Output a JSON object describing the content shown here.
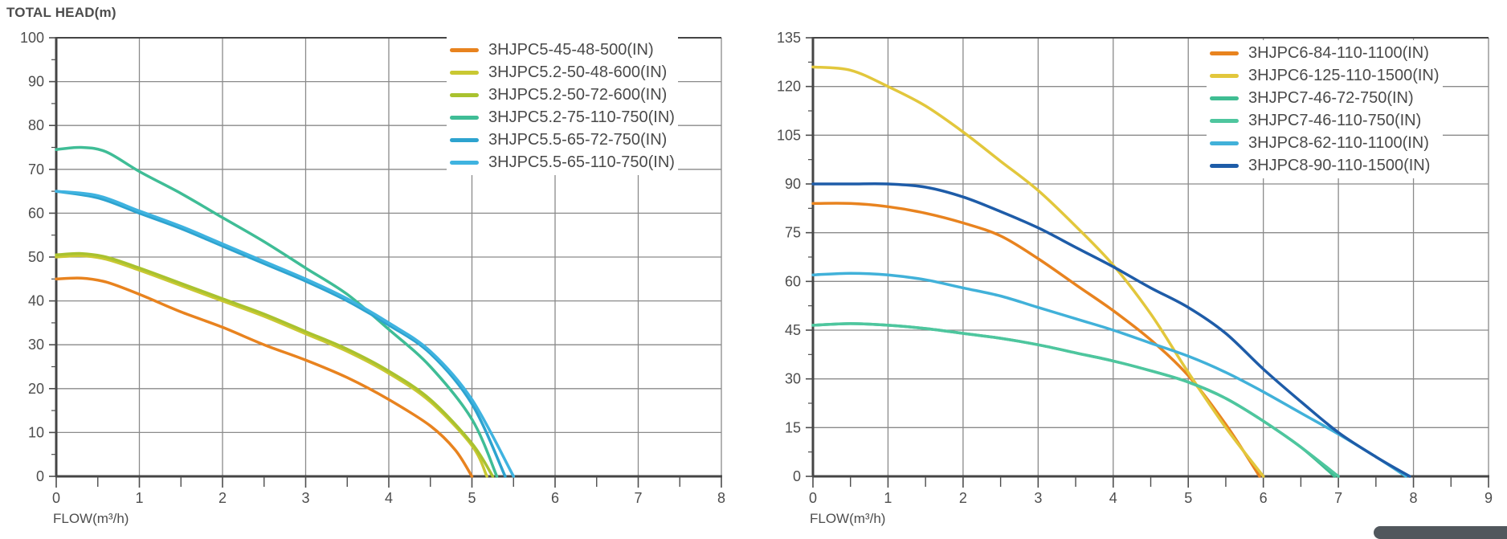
{
  "page": {
    "background": "#ffffff",
    "text_color": "#4d4d4d",
    "grid_color": "#8a8a8a",
    "axis_color": "#454545"
  },
  "corner_widget": {
    "color": "#51575d"
  },
  "chart_data": [
    {
      "type": "line",
      "title": "TOTAL HEAD(m)",
      "xlabel": "FLOW(m³/h)",
      "ylabel": "TOTAL HEAD(m)",
      "xlim": [
        0,
        8
      ],
      "ylim": [
        0,
        100
      ],
      "x_ticks": [
        0,
        1,
        2,
        3,
        4,
        5,
        6,
        7,
        8
      ],
      "y_ticks": [
        0,
        10,
        20,
        30,
        40,
        50,
        60,
        70,
        80,
        90,
        100
      ],
      "x_minor_step": 0.5,
      "y_minor_step": 5,
      "grid": true,
      "legend_position": "top-right",
      "series": [
        {
          "name": "3HJPC5-45-48-500(IN)",
          "color": "#E8831F",
          "points": [
            [
              0,
              45
            ],
            [
              0.3,
              45.2
            ],
            [
              0.6,
              44.3
            ],
            [
              1,
              41.5
            ],
            [
              1.5,
              37.5
            ],
            [
              2,
              34
            ],
            [
              2.5,
              30
            ],
            [
              3,
              26.5
            ],
            [
              3.5,
              22.5
            ],
            [
              4,
              17.5
            ],
            [
              4.5,
              11.5
            ],
            [
              4.8,
              6
            ],
            [
              5,
              0
            ]
          ]
        },
        {
          "name": "3HJPC5.2-50-48-600(IN)",
          "color": "#C9C832",
          "points": [
            [
              0,
              50
            ],
            [
              0.3,
              50.3
            ],
            [
              0.6,
              49.5
            ],
            [
              1,
              47
            ],
            [
              1.5,
              43.5
            ],
            [
              2,
              40
            ],
            [
              2.5,
              36.5
            ],
            [
              3,
              32.5
            ],
            [
              3.5,
              28.5
            ],
            [
              4,
              23.5
            ],
            [
              4.5,
              17
            ],
            [
              5,
              7
            ],
            [
              5.18,
              0
            ]
          ]
        },
        {
          "name": "3HJPC5.2-50-72-600(IN)",
          "color": "#A9C22F",
          "points": [
            [
              0,
              50.5
            ],
            [
              0.3,
              50.8
            ],
            [
              0.6,
              50
            ],
            [
              1,
              47.5
            ],
            [
              1.5,
              44
            ],
            [
              2,
              40.5
            ],
            [
              2.5,
              37
            ],
            [
              3,
              33
            ],
            [
              3.5,
              29
            ],
            [
              4,
              24
            ],
            [
              4.5,
              17.5
            ],
            [
              5,
              7.5
            ],
            [
              5.25,
              0
            ]
          ]
        },
        {
          "name": "3HJPC5.2-75-110-750(IN)",
          "color": "#3FBD96",
          "points": [
            [
              0,
              74.5
            ],
            [
              0.3,
              75
            ],
            [
              0.6,
              74
            ],
            [
              1,
              69.5
            ],
            [
              1.5,
              64.5
            ],
            [
              2,
              59
            ],
            [
              2.5,
              53.5
            ],
            [
              3,
              47.5
            ],
            [
              3.5,
              41.5
            ],
            [
              4,
              33.5
            ],
            [
              4.5,
              25
            ],
            [
              5,
              13
            ],
            [
              5.3,
              0
            ]
          ]
        },
        {
          "name": "3HJPC5.5-65-72-750(IN)",
          "color": "#2DA3CF",
          "points": [
            [
              0,
              65
            ],
            [
              0.5,
              63.5
            ],
            [
              1,
              60
            ],
            [
              1.5,
              56.5
            ],
            [
              2,
              52.5
            ],
            [
              2.5,
              48.5
            ],
            [
              3,
              44.5
            ],
            [
              3.5,
              40
            ],
            [
              4,
              34.5
            ],
            [
              4.5,
              28
            ],
            [
              5,
              16.5
            ],
            [
              5.4,
              0
            ]
          ]
        },
        {
          "name": "3HJPC5.5-65-110-750(IN)",
          "color": "#3FB3E0",
          "points": [
            [
              0,
              65
            ],
            [
              0.5,
              64
            ],
            [
              1,
              60.5
            ],
            [
              1.5,
              57
            ],
            [
              2,
              53
            ],
            [
              2.5,
              49
            ],
            [
              3,
              45
            ],
            [
              3.5,
              40.5
            ],
            [
              4,
              35
            ],
            [
              4.5,
              28.5
            ],
            [
              5,
              17.5
            ],
            [
              5.5,
              0
            ]
          ]
        }
      ]
    },
    {
      "type": "line",
      "title": "",
      "xlabel": "FLOW(m³/h)",
      "ylabel": "TOTAL HEAD(m)",
      "xlim": [
        0,
        9
      ],
      "ylim": [
        0,
        135
      ],
      "x_ticks": [
        0,
        1,
        2,
        3,
        4,
        5,
        6,
        7,
        8,
        9
      ],
      "y_ticks": [
        0,
        15,
        30,
        45,
        60,
        75,
        90,
        105,
        120,
        135
      ],
      "x_minor_step": 0.5,
      "y_minor_step": 7.5,
      "grid": true,
      "legend_position": "top-right",
      "series": [
        {
          "name": "3HJPC6-84-110-1100(IN)",
          "color": "#E8831F",
          "points": [
            [
              0,
              84
            ],
            [
              0.5,
              84
            ],
            [
              1,
              83
            ],
            [
              1.5,
              81
            ],
            [
              2,
              78
            ],
            [
              2.5,
              74
            ],
            [
              3,
              67
            ],
            [
              3.5,
              59
            ],
            [
              4,
              51
            ],
            [
              4.5,
              42
            ],
            [
              5,
              31
            ],
            [
              5.5,
              16
            ],
            [
              5.95,
              0
            ]
          ]
        },
        {
          "name": "3HJPC6-125-110-1500(IN)",
          "color": "#E2C73C",
          "points": [
            [
              0,
              126
            ],
            [
              0.5,
              125
            ],
            [
              1,
              120
            ],
            [
              1.5,
              114
            ],
            [
              2,
              106
            ],
            [
              2.5,
              97
            ],
            [
              3,
              88
            ],
            [
              3.5,
              77
            ],
            [
              4,
              65
            ],
            [
              4.5,
              50
            ],
            [
              5,
              32
            ],
            [
              5.5,
              15
            ],
            [
              6,
              0
            ]
          ]
        },
        {
          "name": "3HJPC7-46-72-750(IN)",
          "color": "#3FBD92",
          "points": [
            [
              0,
              46.5
            ],
            [
              0.5,
              47
            ],
            [
              1,
              46.5
            ],
            [
              1.5,
              45.5
            ],
            [
              2,
              44
            ],
            [
              2.5,
              42.5
            ],
            [
              3,
              40.5
            ],
            [
              3.5,
              38
            ],
            [
              4,
              35.5
            ],
            [
              4.5,
              32.5
            ],
            [
              5,
              29
            ],
            [
              5.5,
              24
            ],
            [
              6,
              17
            ],
            [
              6.5,
              9
            ],
            [
              6.95,
              0
            ]
          ]
        },
        {
          "name": "3HJPC7-46-110-750(IN)",
          "color": "#4EC69E",
          "points": [
            [
              0,
              46.5
            ],
            [
              0.5,
              47
            ],
            [
              1,
              46.5
            ],
            [
              1.5,
              45.5
            ],
            [
              2,
              44
            ],
            [
              2.5,
              42.5
            ],
            [
              3,
              40.5
            ],
            [
              3.5,
              38
            ],
            [
              4,
              35.5
            ],
            [
              4.5,
              32.5
            ],
            [
              5,
              29
            ],
            [
              5.5,
              24
            ],
            [
              6,
              17
            ],
            [
              6.5,
              9
            ],
            [
              7,
              0
            ]
          ]
        },
        {
          "name": "3HJPC8-62-110-1100(IN)",
          "color": "#41B1D9",
          "points": [
            [
              0,
              62
            ],
            [
              0.5,
              62.5
            ],
            [
              1,
              62
            ],
            [
              1.5,
              60.5
            ],
            [
              2,
              58
            ],
            [
              2.5,
              55.5
            ],
            [
              3,
              52
            ],
            [
              3.5,
              48.5
            ],
            [
              4,
              45
            ],
            [
              4.5,
              41
            ],
            [
              5,
              37
            ],
            [
              5.5,
              32
            ],
            [
              6,
              26
            ],
            [
              6.5,
              19.5
            ],
            [
              7,
              13
            ],
            [
              7.5,
              6
            ],
            [
              7.9,
              0
            ]
          ]
        },
        {
          "name": "3HJPC8-90-110-1500(IN)",
          "color": "#1E5CA8",
          "points": [
            [
              0,
              90
            ],
            [
              0.5,
              90
            ],
            [
              1,
              90
            ],
            [
              1.5,
              89
            ],
            [
              2,
              86
            ],
            [
              2.5,
              81.5
            ],
            [
              3,
              76.5
            ],
            [
              3.5,
              70.5
            ],
            [
              4,
              64.5
            ],
            [
              4.5,
              58
            ],
            [
              5,
              52
            ],
            [
              5.5,
              44
            ],
            [
              6,
              33
            ],
            [
              6.5,
              23
            ],
            [
              7,
              13.5
            ],
            [
              7.5,
              6
            ],
            [
              7.95,
              0
            ]
          ]
        }
      ]
    }
  ]
}
